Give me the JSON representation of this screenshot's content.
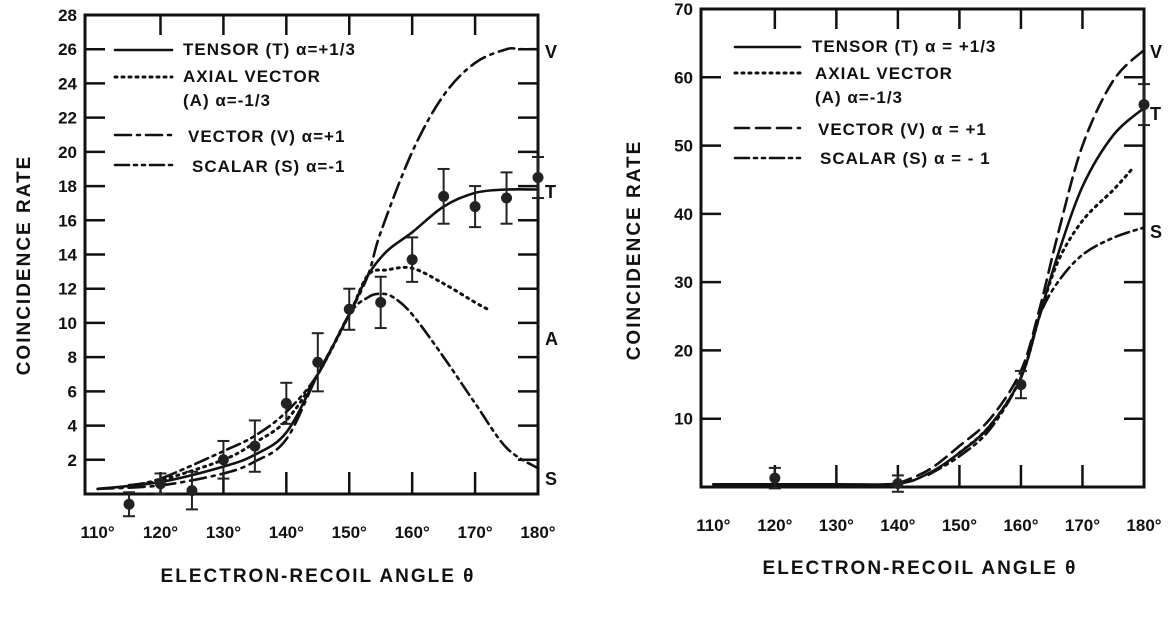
{
  "chart_data": [
    {
      "type": "line",
      "xlabel": "ELECTRON-RECOIL ANGLE θ",
      "ylabel": "COINCIDENCE RATE",
      "xlim": [
        108,
        180
      ],
      "ylim": [
        0,
        28
      ],
      "xticks": [
        110,
        120,
        130,
        140,
        150,
        160,
        170,
        180
      ],
      "xtick_labels": [
        "110°",
        "120°",
        "130°",
        "140°",
        "150°",
        "160°",
        "170°",
        "180°"
      ],
      "yticks": [
        2,
        4,
        6,
        8,
        10,
        12,
        14,
        16,
        18,
        20,
        22,
        24,
        26,
        28
      ],
      "ytick_labels": [
        "2",
        "4",
        "6",
        "8",
        "10",
        "12",
        "14",
        "16",
        "18",
        "20",
        "22",
        "24",
        "26",
        "28"
      ],
      "grid": false,
      "legend_placement": "top-left",
      "legend": [
        {
          "label": "TENSOR (T) α=+1/3",
          "style": "solid"
        },
        {
          "label": "AXIAL VECTOR",
          "label2": "(A) α=-1/3",
          "style": "dotted"
        },
        {
          "label": "VECTOR (V) α=+1",
          "style": "dash-dot"
        },
        {
          "label": "SCALAR (S) α=-1",
          "style": "dash-dot-dot"
        }
      ],
      "series": [
        {
          "name": "T",
          "style": "solid",
          "x": [
            110,
            120,
            130,
            135,
            140,
            145,
            150,
            153,
            156,
            160,
            165,
            170,
            175,
            180
          ],
          "y": [
            0.3,
            0.7,
            1.6,
            2.3,
            3.6,
            7,
            10.5,
            12.8,
            14.2,
            15.3,
            16.8,
            17.6,
            17.8,
            17.8
          ]
        },
        {
          "name": "A",
          "style": "dotted",
          "x": [
            115,
            120,
            130,
            135,
            140,
            145,
            150,
            153,
            156,
            160,
            165,
            170,
            172
          ],
          "y": [
            0.5,
            0.8,
            2,
            3,
            4.3,
            7,
            10.5,
            12.8,
            13.1,
            13.2,
            12.3,
            11.2,
            10.8
          ]
        },
        {
          "name": "V",
          "style": "dash-dot",
          "x": [
            110,
            120,
            130,
            135,
            140,
            145,
            150,
            153,
            155,
            160,
            165,
            170,
            175,
            177,
            180
          ],
          "y": [
            0.3,
            0.5,
            1.2,
            1.9,
            3.2,
            7,
            10.5,
            12.8,
            15.3,
            20,
            23.3,
            25.2,
            26,
            26,
            26
          ]
        },
        {
          "name": "S",
          "style": "dash-dot-dot",
          "x": [
            115,
            120,
            130,
            135,
            140,
            145,
            150,
            153,
            155,
            157,
            160,
            165,
            170,
            175,
            180
          ],
          "y": [
            0.5,
            0.9,
            2.5,
            3.4,
            4.8,
            7,
            10.5,
            11.5,
            11.7,
            11.5,
            10.5,
            8,
            5.3,
            2.7,
            1.5
          ]
        }
      ],
      "curve_labels": [
        "V",
        "T",
        "A",
        "S"
      ],
      "points": {
        "x": [
          115,
          120,
          125,
          130,
          135,
          140,
          145,
          150,
          155,
          160,
          165,
          170,
          175,
          180
        ],
        "y": [
          -0.6,
          0.6,
          0.2,
          2.0,
          2.8,
          5.3,
          7.7,
          10.8,
          11.2,
          13.7,
          17.4,
          16.8,
          17.3,
          18.5
        ],
        "err": [
          0.7,
          0.6,
          1.1,
          1.1,
          1.5,
          1.2,
          1.7,
          1.2,
          1.5,
          1.3,
          1.6,
          1.2,
          1.5,
          1.2
        ]
      }
    },
    {
      "type": "line",
      "xlabel": "ELECTRON-RECOIL ANGLE θ",
      "ylabel": "COINCIDENCE RATE",
      "xlim": [
        108,
        180
      ],
      "ylim": [
        0,
        70
      ],
      "xticks": [
        110,
        120,
        130,
        140,
        150,
        160,
        170,
        180
      ],
      "xtick_labels": [
        "110°",
        "120°",
        "130°",
        "140°",
        "150°",
        "160°",
        "170°",
        "180°"
      ],
      "yticks": [
        10,
        20,
        30,
        40,
        50,
        60,
        70
      ],
      "ytick_labels": [
        "10",
        "20",
        "30",
        "40",
        "50",
        "60",
        "70"
      ],
      "grid": false,
      "legend_placement": "top-left",
      "legend": [
        {
          "label": "TENSOR (T) α = +1/3",
          "style": "solid"
        },
        {
          "label": "AXIAL VECTOR",
          "label2": "(A) α=-1/3",
          "style": "dotted"
        },
        {
          "label": "VECTOR (V) α = +1",
          "style": "dashed"
        },
        {
          "label": "SCALAR (S) α = - 1",
          "style": "dash-dot-dot"
        }
      ],
      "series": [
        {
          "name": "T",
          "style": "solid",
          "x": [
            110,
            130,
            140,
            145,
            150,
            155,
            160,
            163,
            166,
            170,
            175,
            180
          ],
          "y": [
            0.4,
            0.4,
            0.5,
            2,
            5,
            9,
            16,
            25,
            34,
            44,
            51.5,
            55.5
          ]
        },
        {
          "name": "A",
          "style": "dotted",
          "x": [
            150,
            155,
            160,
            163,
            166,
            170,
            175,
            178
          ],
          "y": [
            5,
            9,
            16,
            25,
            33,
            39,
            43.5,
            46.5
          ]
        },
        {
          "name": "V",
          "style": "dashed",
          "x": [
            140,
            145,
            150,
            155,
            160,
            163,
            166,
            170,
            175,
            180
          ],
          "y": [
            0.5,
            2.5,
            6,
            10,
            17,
            26,
            37,
            50,
            59.5,
            64
          ]
        },
        {
          "name": "S",
          "style": "dash-dot-dot",
          "x": [
            145,
            150,
            155,
            160,
            163,
            166,
            170,
            175,
            180
          ],
          "y": [
            1.8,
            4.5,
            8.5,
            16,
            25,
            30,
            34,
            36.5,
            38
          ]
        }
      ],
      "curve_labels": [
        "V",
        "T",
        "S"
      ],
      "points": {
        "x": [
          120,
          140,
          160,
          180
        ],
        "y": [
          1.3,
          0.5,
          15,
          56
        ],
        "err": [
          1.5,
          1.2,
          2,
          3
        ]
      }
    }
  ]
}
